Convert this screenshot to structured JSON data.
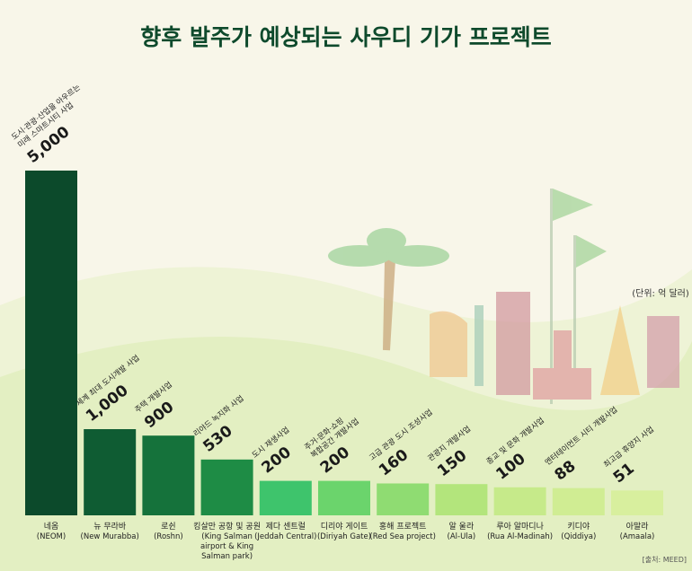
{
  "chart_data": {
    "type": "bar",
    "title": "향후 발주가 예상되는 사우디 기가 프로젝트",
    "unit_note": "(단위: 억 달러)",
    "source": "[출처: MEED]",
    "categories": [
      "네옴",
      "뉴 무라바",
      "로쉰",
      "킹살만 공항 및 공원",
      "제다 센트럴",
      "디리야 게이트",
      "홍해 프로젝트",
      "알 울라",
      "루아 알마디나",
      "키디야",
      "아말라"
    ],
    "category_subtitles": [
      "(NEOM)",
      "(New Murabba)",
      "(Roshn)",
      "(King Salman airport & King Salman park)",
      "(Jeddah Central)",
      "(Diriyah Gate)",
      "(Red Sea project)",
      "(Al-Ula)",
      "(Rua Al-Madinah)",
      "(Qiddiya)",
      "(Amaala)"
    ],
    "descriptions": [
      [
        "도시·관광·산업을 아우르는",
        "미래 스마트시티 사업"
      ],
      [
        "세계 최대 도시개발 사업"
      ],
      [
        "주택 개발사업"
      ],
      [
        "리야드 녹지화 사업"
      ],
      [
        "도시 재생사업"
      ],
      [
        "주거·문화·쇼핑",
        "복합공간 개발사업"
      ],
      [
        "고급 관광 도시 조성사업"
      ],
      [
        "관광지 개발사업"
      ],
      [
        "종교 및 문화 개발사업"
      ],
      [
        "엔터테이먼트 시티 개발사업"
      ],
      [
        "최고급 휴양지 사업"
      ]
    ],
    "values": [
      5000,
      1000,
      900,
      530,
      200,
      200,
      160,
      150,
      100,
      88,
      51
    ],
    "value_labels": [
      "5,000",
      "1,000",
      "900",
      "530",
      "200",
      "200",
      "160",
      "150",
      "100",
      "88",
      "51"
    ],
    "colors": [
      "#0c4a2b",
      "#0f5c33",
      "#15723b",
      "#1e8c45",
      "#3ec46c",
      "#6bd46c",
      "#8fdc72",
      "#b3e57c",
      "#c6ea8a",
      "#d0ed93",
      "#d8ef9e"
    ]
  }
}
